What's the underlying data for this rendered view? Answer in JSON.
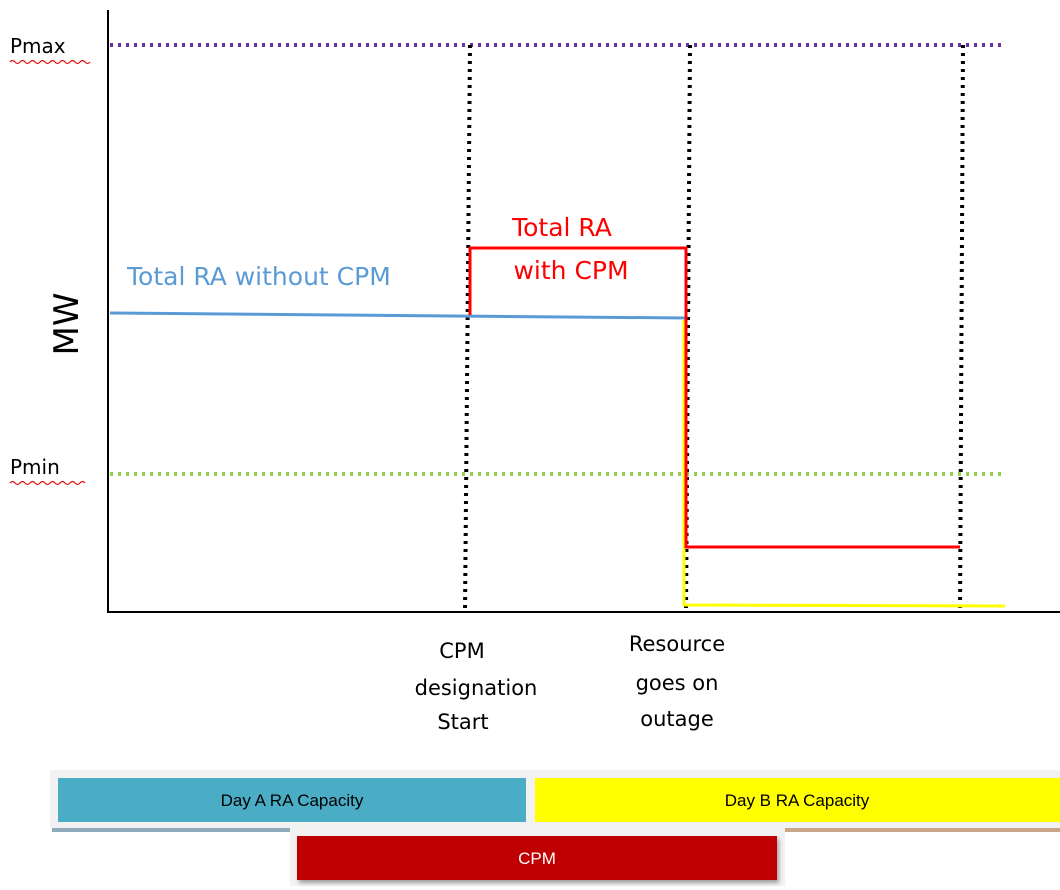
{
  "axis": {
    "y_label": "MW",
    "pmax_label": "Pmax",
    "pmin_label": "Pmin"
  },
  "lines": {
    "total_ra_without_cpm": "Total RA without CPM",
    "total_ra_with_cpm_line1": "Total RA",
    "total_ra_with_cpm_line2": "with CPM"
  },
  "markers": {
    "cpm_start": [
      "CPM",
      "designation",
      "Start"
    ],
    "outage": [
      "Resource",
      "goes on",
      "outage"
    ]
  },
  "timeline": {
    "day_a": "Day A RA Capacity",
    "day_b": "Day B RA Capacity",
    "cpm": "CPM"
  },
  "colors": {
    "blue_line": "#5B9BD5",
    "red_line": "#FF0000",
    "yellow_line": "#FFFF00",
    "pmax_dotted": "#7030A0",
    "pmin_dotted": "#92D050",
    "day_a_fill": "#4BACC6",
    "day_b_fill": "#FFFF00",
    "cpm_fill": "#C00000"
  }
}
